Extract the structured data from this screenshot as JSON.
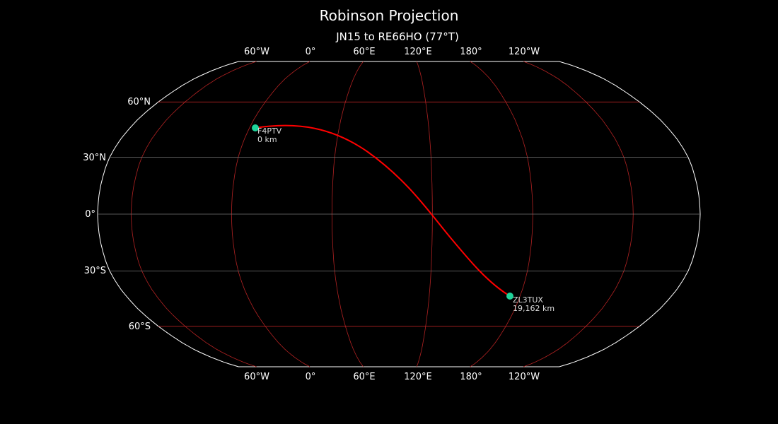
{
  "title": "Robinson Projection",
  "subtitle": "JN15 to RE66HO (77°T)",
  "map": {
    "projection": "Robinson",
    "central_longitude": 100,
    "lon_labels_top": [
      "60°W",
      "0°",
      "60°E",
      "120°E",
      "180°",
      "120°W"
    ],
    "lon_labels_bottom": [
      "60°W",
      "0°",
      "60°E",
      "120°E",
      "180°",
      "120°W"
    ],
    "lat_labels": [
      "60°N",
      "30°N",
      "0°",
      "30°S",
      "60°S"
    ],
    "colors": {
      "background": "#000000",
      "coastline": "#888888",
      "graticule": "#b22222",
      "path": "#ff0000",
      "station": "#1fd39a"
    }
  },
  "stations": [
    {
      "call": "F4PTV",
      "distance": "0 km"
    },
    {
      "call": "ZL3TUX",
      "distance": "19,162 km"
    }
  ]
}
